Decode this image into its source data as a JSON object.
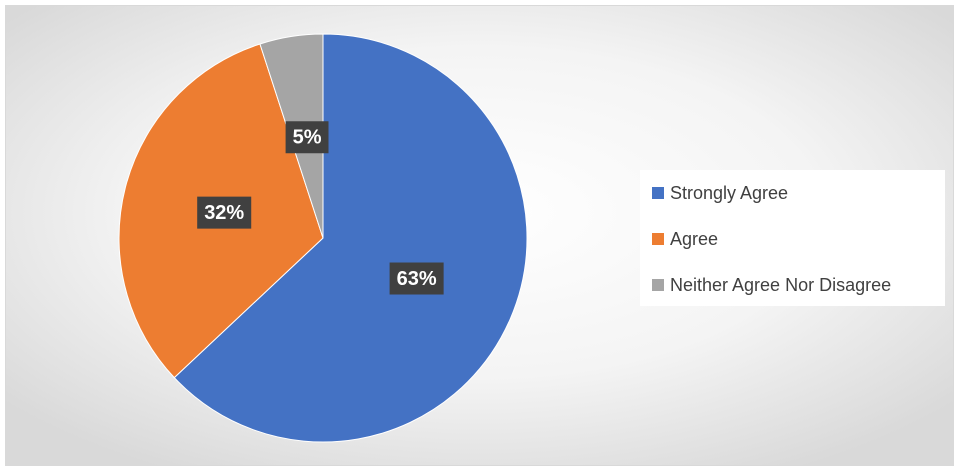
{
  "chart_data": {
    "type": "pie",
    "categories": [
      "Strongly Agree",
      "Agree",
      "Neither Agree Nor Disagree"
    ],
    "values": [
      63,
      32,
      5
    ],
    "value_labels": [
      "63%",
      "32%",
      "5%"
    ],
    "colors": [
      "#4472c4",
      "#ed7d31",
      "#a5a5a5"
    ],
    "legend": "right"
  }
}
